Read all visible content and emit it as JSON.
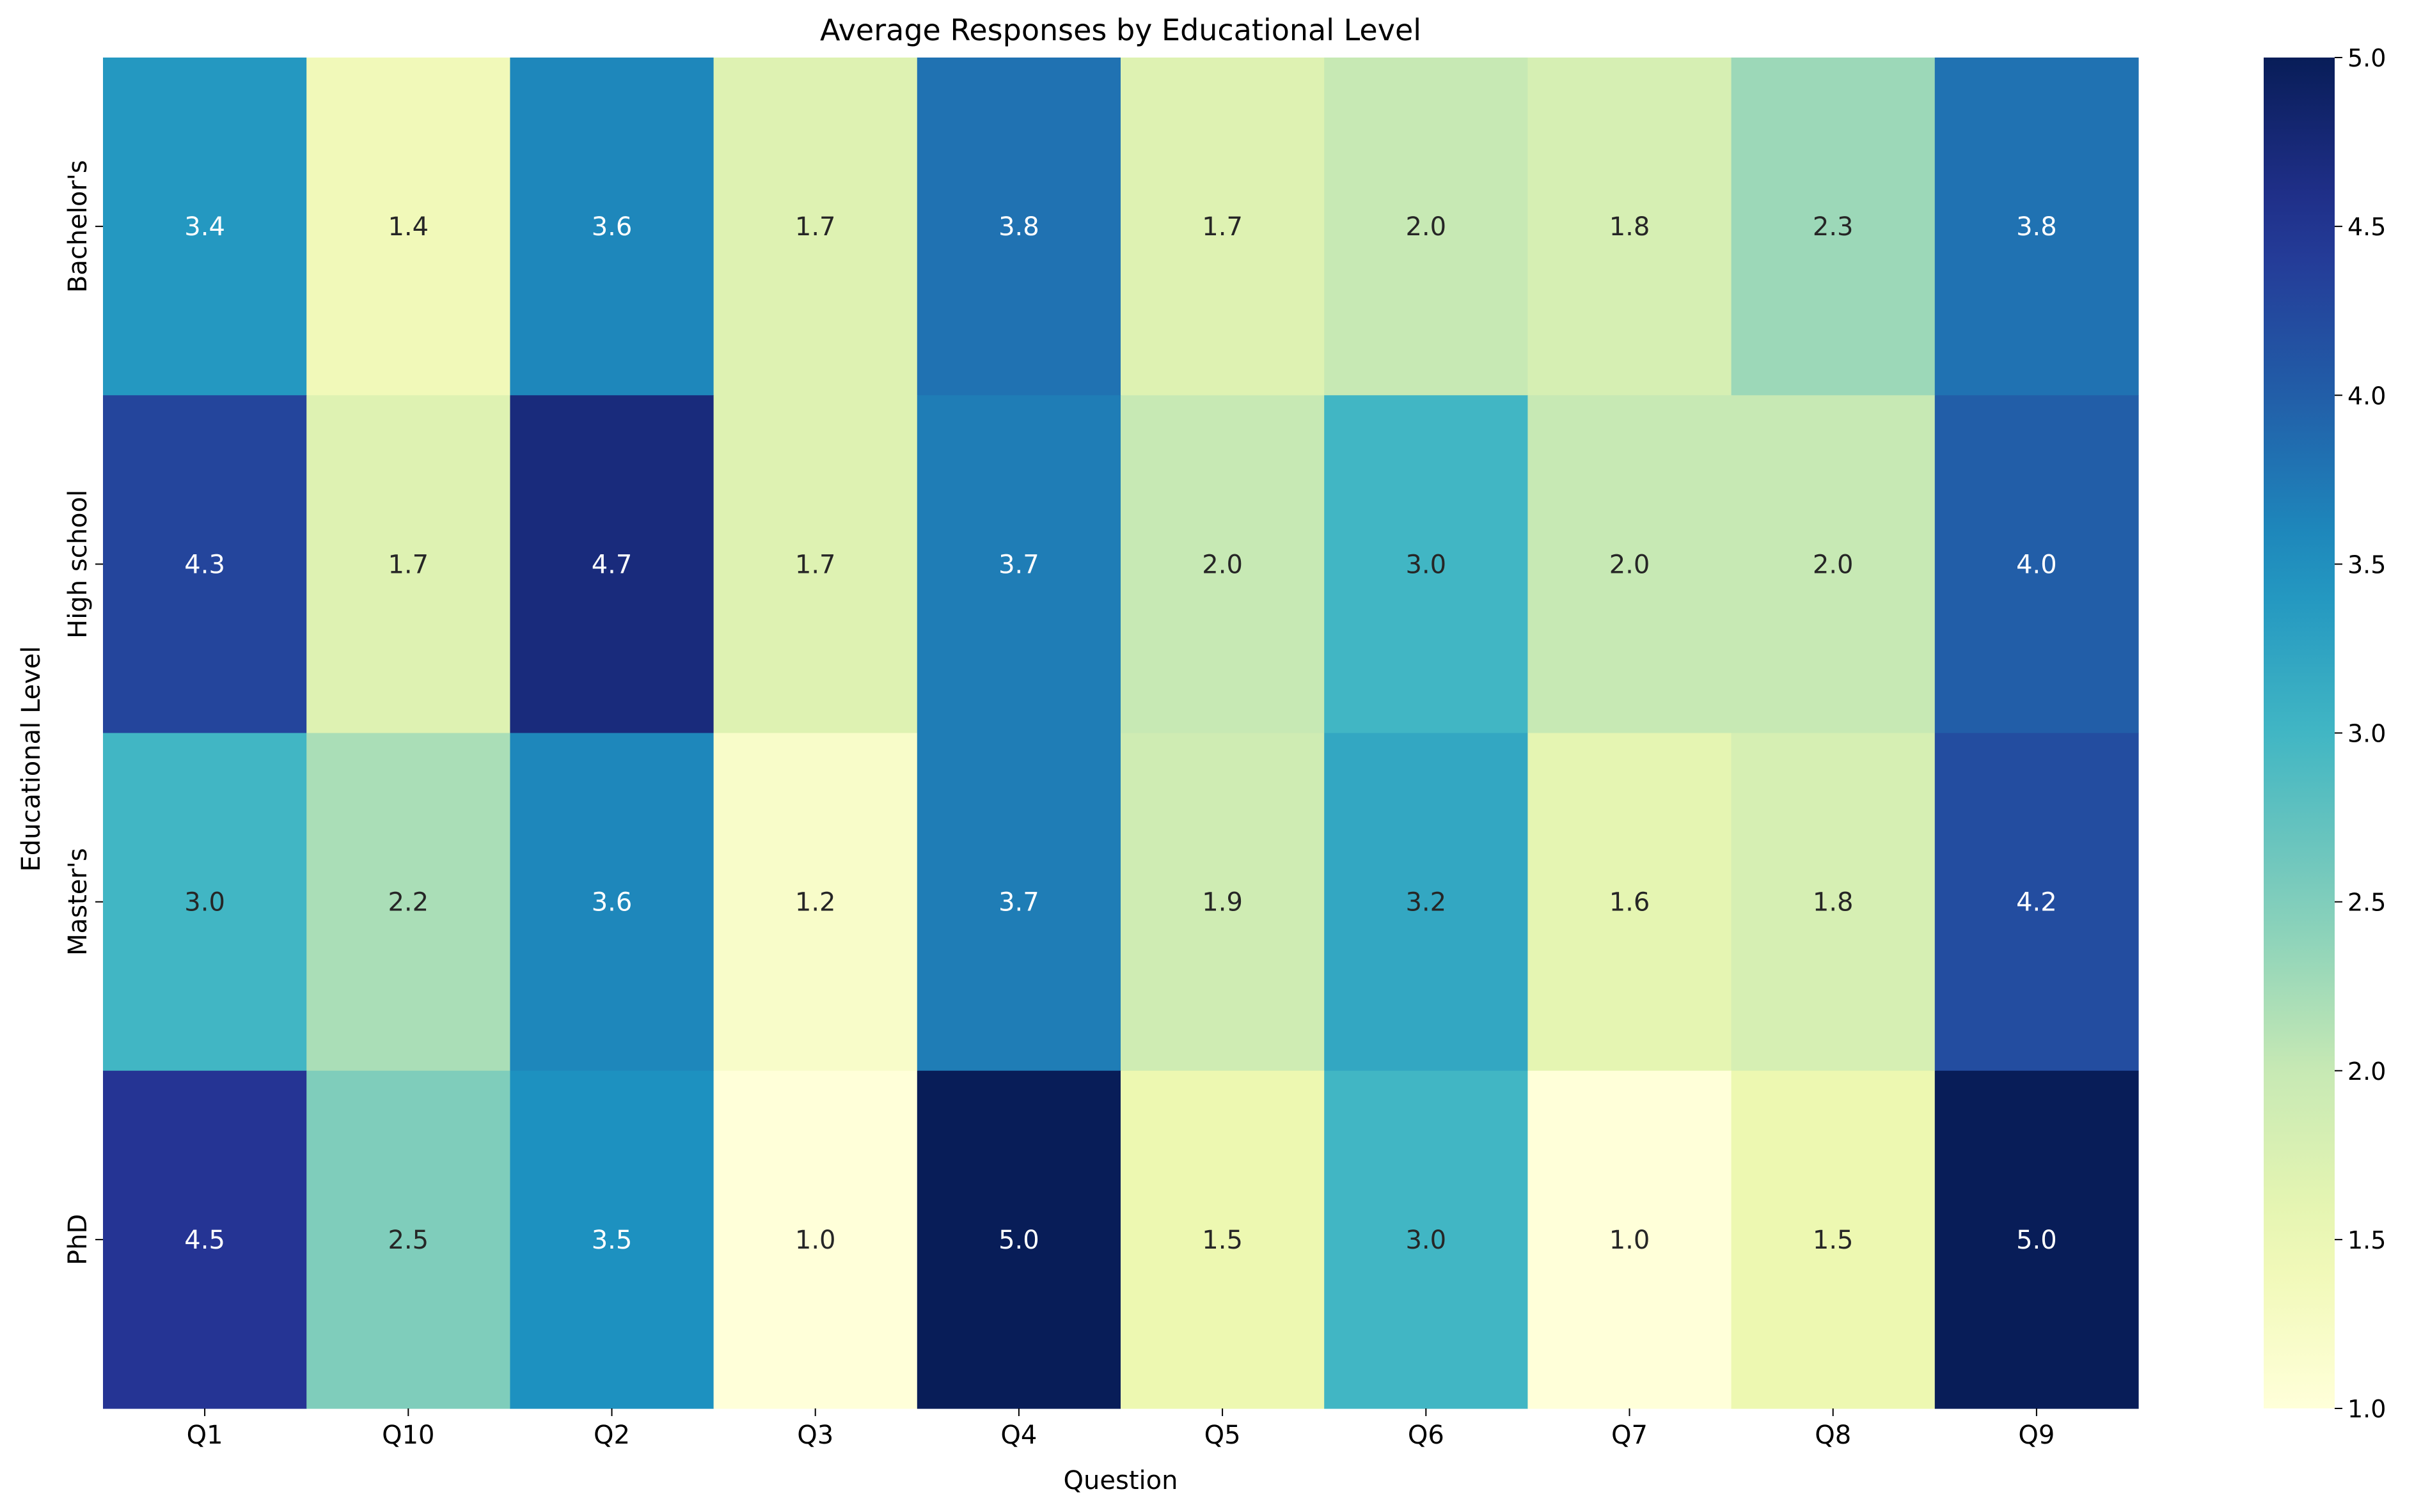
{
  "chart_data": {
    "type": "heatmap",
    "title": "Average Responses by Educational Level",
    "xlabel": "Question",
    "ylabel": "Educational Level",
    "x_categories": [
      "Q1",
      "Q10",
      "Q2",
      "Q3",
      "Q4",
      "Q5",
      "Q6",
      "Q7",
      "Q8",
      "Q9"
    ],
    "y_categories": [
      "Bachelor's",
      "High school",
      "Master's",
      "PhD"
    ],
    "values": [
      [
        3.4,
        1.4,
        3.6,
        1.7,
        3.8,
        1.7,
        2.0,
        1.8,
        2.3,
        3.8
      ],
      [
        4.3,
        1.7,
        4.7,
        1.7,
        3.7,
        2.0,
        3.0,
        2.0,
        2.0,
        4.0
      ],
      [
        3.0,
        2.2,
        3.6,
        1.2,
        3.7,
        1.9,
        3.2,
        1.6,
        1.8,
        4.2
      ],
      [
        4.5,
        2.5,
        3.5,
        1.0,
        5.0,
        1.5,
        3.0,
        1.0,
        1.5,
        5.0
      ]
    ],
    "colorbar": {
      "min": 1.0,
      "max": 5.0,
      "ticks": [
        "1.0",
        "1.5",
        "2.0",
        "2.5",
        "3.0",
        "3.5",
        "4.0",
        "4.5",
        "5.0"
      ],
      "colormap": "YlGnBu"
    },
    "annotations": "cell values shown with one decimal",
    "grid": false
  }
}
